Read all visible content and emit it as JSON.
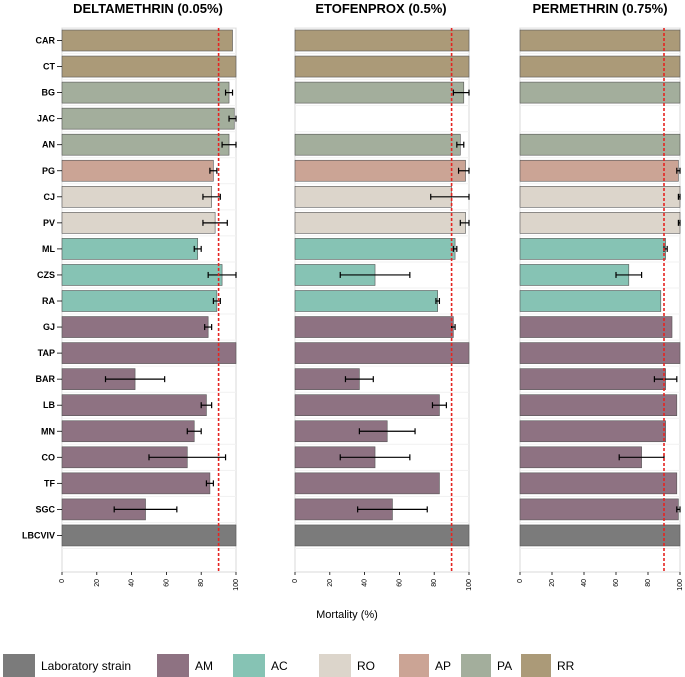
{
  "chart_data": {
    "type": "bar",
    "orientation": "horizontal",
    "xlabel": "Mortality (%)",
    "xlim": [
      0,
      100
    ],
    "xticks": [
      "0",
      "20",
      "40",
      "60",
      "80",
      "100"
    ],
    "threshold": 90,
    "categories": [
      "CAR",
      "CT",
      "BG",
      "JAC",
      "AN",
      "PG",
      "CJ",
      "PV",
      "ML",
      "CZS",
      "RA",
      "GJ",
      "TAP",
      "BAR",
      "LB",
      "MN",
      "CO",
      "TF",
      "SGC",
      "LBCVIV"
    ],
    "category_groups": [
      "RR",
      "RR",
      "PA",
      "PA",
      "PA",
      "AP",
      "RO",
      "RO",
      "AC",
      "AC",
      "AC",
      "AM",
      "AM",
      "AM",
      "AM",
      "AM",
      "AM",
      "AM",
      "AM",
      "Laboratory strain"
    ],
    "series": [
      {
        "name": "DELTAMETHRIN (0.05%)",
        "values": [
          98,
          100,
          96,
          99,
          96,
          87,
          86,
          88,
          78,
          92,
          89,
          84,
          100,
          42,
          83,
          76,
          72,
          85,
          48,
          100
        ],
        "errors": [
          null,
          null,
          2,
          3,
          4,
          2,
          5,
          7,
          2,
          8,
          2,
          2,
          null,
          17,
          3,
          4,
          22,
          2,
          18,
          null
        ]
      },
      {
        "name": "ETOFENPROX (0.5%)",
        "values": [
          100,
          100,
          97,
          null,
          95,
          98,
          90,
          98,
          92,
          46,
          82,
          91,
          100,
          37,
          83,
          53,
          46,
          83,
          56,
          100
        ],
        "errors": [
          null,
          null,
          6,
          null,
          2,
          4,
          12,
          3,
          1,
          20,
          1,
          1,
          null,
          8,
          4,
          16,
          20,
          null,
          20,
          null
        ]
      },
      {
        "name": "PERMETHRIN (0.75%)",
        "values": [
          100,
          100,
          100,
          null,
          100,
          99,
          100,
          100,
          91,
          68,
          88,
          95,
          100,
          91,
          98,
          91,
          76,
          98,
          99,
          100
        ],
        "errors": [
          null,
          null,
          null,
          null,
          null,
          1,
          1,
          1,
          1,
          8,
          null,
          null,
          null,
          7,
          null,
          null,
          14,
          null,
          1,
          null
        ]
      }
    ],
    "legend": [
      {
        "label": "Laboratory strain",
        "group": "Laboratory strain"
      },
      {
        "label": "AM",
        "group": "AM"
      },
      {
        "label": "AC",
        "group": "AC"
      },
      {
        "label": "RO",
        "group": "RO"
      },
      {
        "label": "AP",
        "group": "AP"
      },
      {
        "label": "PA",
        "group": "PA"
      },
      {
        "label": "RR",
        "group": "RR"
      }
    ],
    "legend_position": "bottom"
  },
  "colors": {
    "Laboratory strain": "#7b7b7b",
    "AM": "#8e7282",
    "AC": "#86c3b4",
    "RO": "#dcd5cb",
    "AP": "#cba495",
    "PA": "#a3ae9c",
    "RR": "#ab9a78",
    "threshold": "#e52421"
  }
}
